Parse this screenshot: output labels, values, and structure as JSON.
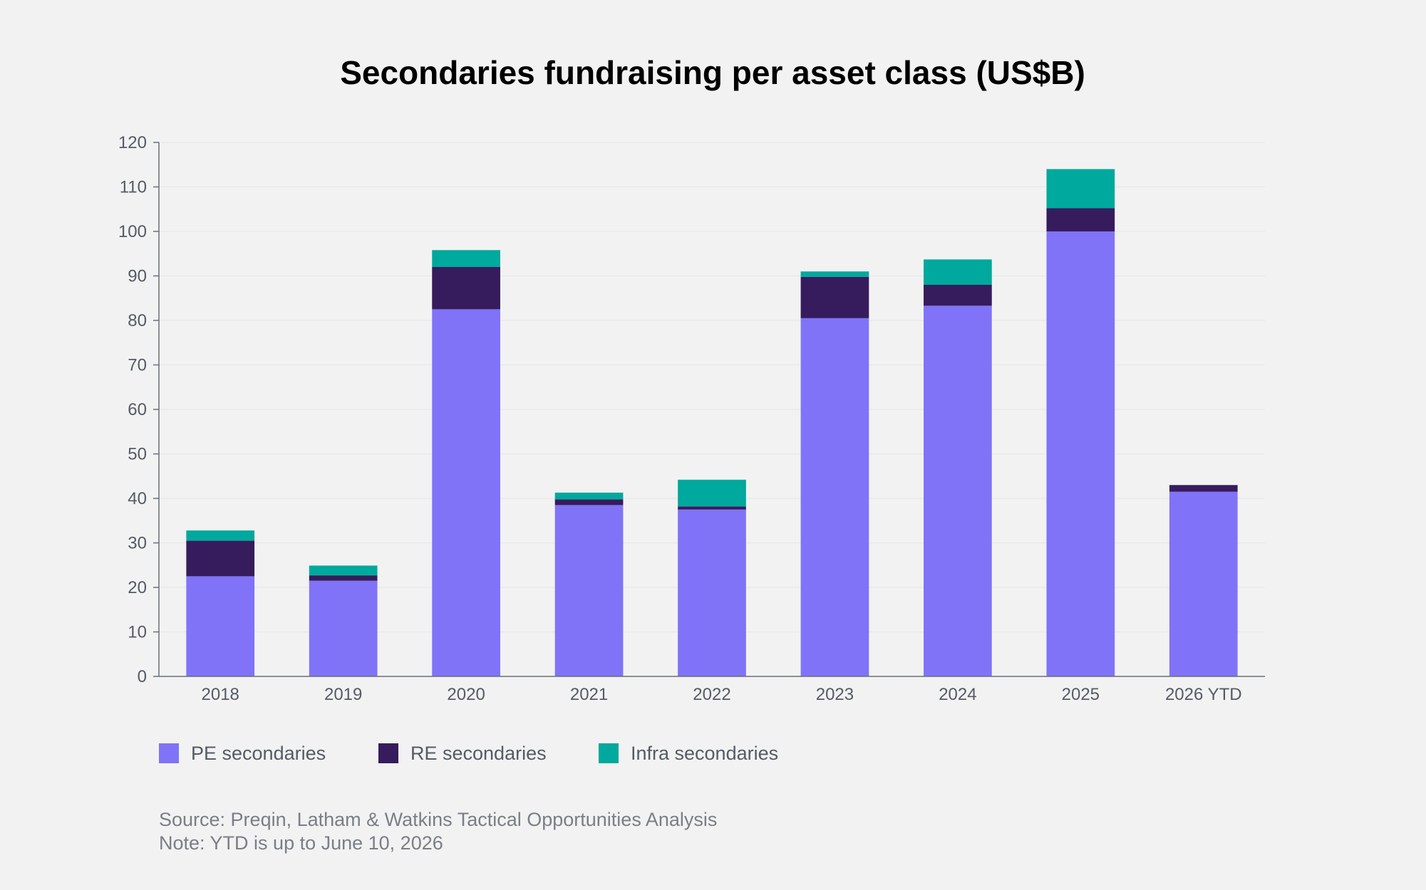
{
  "chart_data": {
    "type": "bar",
    "stacked": true,
    "title": "Secondaries fundraising per asset class (US$B)",
    "xlabel": "",
    "ylabel": "",
    "ylim": [
      0,
      120
    ],
    "yticks": [
      0,
      10,
      20,
      30,
      40,
      50,
      60,
      70,
      80,
      90,
      100,
      110,
      120
    ],
    "grid": true,
    "legend_position": "bottom-left",
    "categories": [
      "2018",
      "2019",
      "2020",
      "2021",
      "2022",
      "2023",
      "2024",
      "2025",
      "2026 YTD"
    ],
    "series": [
      {
        "name": "PE secondaries",
        "color": "#8073f7",
        "values": [
          22.5,
          21.5,
          82.5,
          38.5,
          37.5,
          80.5,
          83.3,
          100.0,
          41.5
        ]
      },
      {
        "name": "RE secondaries",
        "color": "#361c5c",
        "values": [
          8.0,
          1.2,
          9.5,
          1.3,
          0.7,
          9.3,
          4.7,
          5.2,
          1.5
        ]
      },
      {
        "name": "Infra secondaries",
        "color": "#00a99d",
        "values": [
          2.3,
          2.2,
          3.8,
          1.5,
          6.0,
          1.2,
          5.7,
          8.8,
          0.0
        ]
      }
    ],
    "notes": [
      "Source: Preqin, Latham & Watkins Tactical Opportunities Analysis",
      "Note: YTD is up to June 10, 2026"
    ]
  }
}
